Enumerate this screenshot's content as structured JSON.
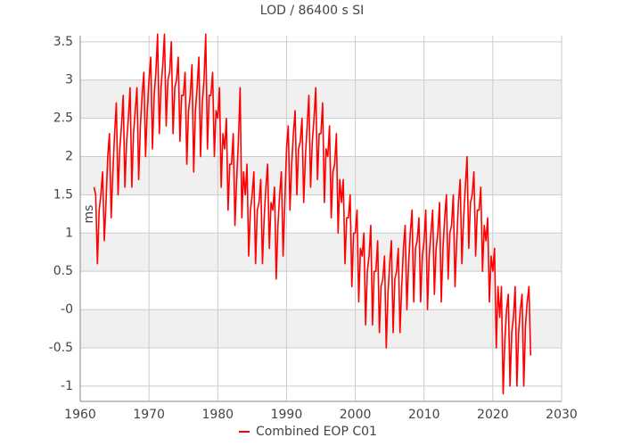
{
  "chart_data": {
    "type": "line",
    "title": "LOD / 86400 s SI",
    "ylabel": "ms",
    "xlim": [
      1960,
      2030
    ],
    "xticks": [
      1960,
      1970,
      1980,
      1990,
      2000,
      2010,
      2020,
      2030
    ],
    "ylim": [
      -1.2,
      3.58
    ],
    "yticks": [
      -1,
      -0.5,
      {
        "value": 0,
        "label": "-0"
      },
      0.5,
      1,
      1.5,
      2,
      2.5,
      3,
      3.5
    ],
    "grid": true,
    "legend": "bottom",
    "x": [
      1962,
      1962.25,
      1962.5,
      1962.75,
      1963,
      1963.25,
      1963.5,
      1963.75,
      1964,
      1964.25,
      1964.5,
      1964.75,
      1965,
      1965.25,
      1965.5,
      1965.75,
      1966,
      1966.25,
      1966.5,
      1966.75,
      1967,
      1967.25,
      1967.5,
      1967.75,
      1968,
      1968.25,
      1968.5,
      1968.75,
      1969,
      1969.25,
      1969.5,
      1969.75,
      1970,
      1970.25,
      1970.5,
      1970.75,
      1971,
      1971.25,
      1971.5,
      1971.75,
      1972,
      1972.25,
      1972.5,
      1972.75,
      1973,
      1973.25,
      1973.5,
      1973.75,
      1974,
      1974.25,
      1974.5,
      1974.75,
      1975,
      1975.25,
      1975.5,
      1975.75,
      1976,
      1976.25,
      1976.5,
      1976.75,
      1977,
      1977.25,
      1977.5,
      1977.75,
      1978,
      1978.25,
      1978.5,
      1978.75,
      1979,
      1979.25,
      1979.5,
      1979.75,
      1980,
      1980.25,
      1980.5,
      1980.75,
      1981,
      1981.25,
      1981.5,
      1981.75,
      1982,
      1982.25,
      1982.5,
      1982.75,
      1983,
      1983.25,
      1983.5,
      1983.75,
      1984,
      1984.25,
      1984.5,
      1984.75,
      1985,
      1985.25,
      1985.5,
      1985.75,
      1986,
      1986.25,
      1986.5,
      1986.75,
      1987,
      1987.25,
      1987.5,
      1987.75,
      1988,
      1988.25,
      1988.5,
      1988.75,
      1989,
      1989.25,
      1989.5,
      1989.75,
      1990,
      1990.25,
      1990.5,
      1990.75,
      1991,
      1991.25,
      1991.5,
      1991.75,
      1992,
      1992.25,
      1992.5,
      1992.75,
      1993,
      1993.25,
      1993.5,
      1993.75,
      1994,
      1994.25,
      1994.5,
      1994.75,
      1995,
      1995.25,
      1995.5,
      1995.75,
      1996,
      1996.25,
      1996.5,
      1996.75,
      1997,
      1997.25,
      1997.5,
      1997.75,
      1998,
      1998.25,
      1998.5,
      1998.75,
      1999,
      1999.25,
      1999.5,
      1999.75,
      2000,
      2000.25,
      2000.5,
      2000.75,
      2001,
      2001.25,
      2001.5,
      2001.75,
      2002,
      2002.25,
      2002.5,
      2002.75,
      2003,
      2003.25,
      2003.5,
      2003.75,
      2004,
      2004.25,
      2004.5,
      2004.75,
      2005,
      2005.25,
      2005.5,
      2005.75,
      2006,
      2006.25,
      2006.5,
      2006.75,
      2007,
      2007.25,
      2007.5,
      2007.75,
      2008,
      2008.25,
      2008.5,
      2008.75,
      2009,
      2009.25,
      2009.5,
      2009.75,
      2010,
      2010.25,
      2010.5,
      2010.75,
      2011,
      2011.25,
      2011.5,
      2011.75,
      2012,
      2012.25,
      2012.5,
      2012.75,
      2013,
      2013.25,
      2013.5,
      2013.75,
      2014,
      2014.25,
      2014.5,
      2014.75,
      2015,
      2015.25,
      2015.5,
      2015.75,
      2016,
      2016.25,
      2016.5,
      2016.75,
      2017,
      2017.25,
      2017.5,
      2017.75,
      2018,
      2018.25,
      2018.5,
      2018.75,
      2019,
      2019.25,
      2019.5,
      2019.75,
      2020,
      2020.25,
      2020.5,
      2020.75,
      2021,
      2021.25,
      2021.5,
      2021.75,
      2022,
      2022.25,
      2022.5,
      2022.75,
      2023,
      2023.25,
      2023.5,
      2023.75,
      2024,
      2024.25,
      2024.5,
      2024.75,
      2025,
      2025.25,
      2025.5
    ],
    "series": [
      {
        "name": "Combined EOP C01",
        "color": "#ff0000",
        "values": [
          1.6,
          1.5,
          0.6,
          1.3,
          1.5,
          1.8,
          0.9,
          1.4,
          2.0,
          2.3,
          1.2,
          1.8,
          2.3,
          2.7,
          1.5,
          2.1,
          2.4,
          2.8,
          1.6,
          2.2,
          2.5,
          2.9,
          1.6,
          2.3,
          2.6,
          2.9,
          1.7,
          2.4,
          2.8,
          3.1,
          2.0,
          2.6,
          3.0,
          3.3,
          2.1,
          2.8,
          3.1,
          3.6,
          2.3,
          2.9,
          3.2,
          3.6,
          2.4,
          3.0,
          3.1,
          3.5,
          2.3,
          2.9,
          3.0,
          3.3,
          2.2,
          2.8,
          2.8,
          3.1,
          1.9,
          2.6,
          2.8,
          3.2,
          1.8,
          2.6,
          2.9,
          3.3,
          2.0,
          2.7,
          3.0,
          3.6,
          2.1,
          2.8,
          2.8,
          3.1,
          2.0,
          2.6,
          2.5,
          2.9,
          1.6,
          2.3,
          2.1,
          2.5,
          1.3,
          1.9,
          1.9,
          2.3,
          1.1,
          1.7,
          2.2,
          2.9,
          1.2,
          1.8,
          1.5,
          1.9,
          0.7,
          1.3,
          1.5,
          1.8,
          0.6,
          1.3,
          1.4,
          1.7,
          0.6,
          1.2,
          1.6,
          1.9,
          0.8,
          1.4,
          1.3,
          1.6,
          0.4,
          1.1,
          1.5,
          1.8,
          0.7,
          1.4,
          2.1,
          2.4,
          1.3,
          1.9,
          2.3,
          2.6,
          1.5,
          2.1,
          2.2,
          2.5,
          1.4,
          2.0,
          2.4,
          2.8,
          1.6,
          2.2,
          2.5,
          2.9,
          1.7,
          2.3,
          2.3,
          2.7,
          1.4,
          2.1,
          2.0,
          2.4,
          1.2,
          1.8,
          1.9,
          2.3,
          1.0,
          1.7,
          1.4,
          1.7,
          0.6,
          1.2,
          1.2,
          1.5,
          0.3,
          1.0,
          1.0,
          1.3,
          0.1,
          0.8,
          0.7,
          1.0,
          -0.2,
          0.5,
          0.7,
          1.1,
          -0.2,
          0.5,
          0.5,
          0.9,
          -0.3,
          0.3,
          0.4,
          0.7,
          -0.5,
          0.2,
          0.6,
          0.9,
          -0.3,
          0.4,
          0.5,
          0.8,
          -0.3,
          0.3,
          0.8,
          1.1,
          0.0,
          0.6,
          1.0,
          1.3,
          0.1,
          0.8,
          0.9,
          1.2,
          0.1,
          0.7,
          0.9,
          1.3,
          0.0,
          0.7,
          1.0,
          1.3,
          0.2,
          0.8,
          1.0,
          1.4,
          0.1,
          0.8,
          1.2,
          1.5,
          0.4,
          1.0,
          1.1,
          1.5,
          0.3,
          0.9,
          1.4,
          1.7,
          0.6,
          1.2,
          1.6,
          2.0,
          0.8,
          1.4,
          1.5,
          1.8,
          0.7,
          1.3,
          1.3,
          1.6,
          0.5,
          1.1,
          0.9,
          1.2,
          0.1,
          0.7,
          0.5,
          0.8,
          -0.5,
          0.3,
          -0.1,
          0.3,
          -1.1,
          -0.4,
          0.0,
          0.2,
          -1.0,
          -0.3,
          -0.1,
          0.3,
          -1.0,
          -0.3,
          0.0,
          0.2,
          -1.0,
          -0.2,
          0.1,
          0.3,
          -0.6
        ]
      }
    ]
  }
}
